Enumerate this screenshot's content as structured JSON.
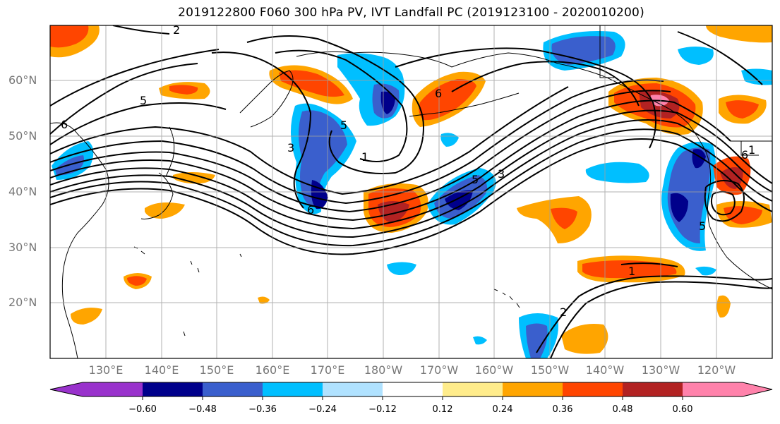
{
  "title": "2019122800 F060 300 hPa PV, IVT Landfall PC (2019123100 - 2020010200)",
  "lat_labels": [
    "60°N",
    "50°N",
    "40°N",
    "30°N",
    "20°N"
  ],
  "lon_labels": [
    "130°E",
    "140°E",
    "150°E",
    "160°E",
    "170°E",
    "180°W",
    "170°W",
    "160°W",
    "150°W",
    "140°W",
    "130°W",
    "120°W"
  ],
  "colorbar": {
    "ticks": [
      "−0.60",
      "−0.48",
      "−0.36",
      "−0.24",
      "−0.12",
      "0.12",
      "0.24",
      "0.36",
      "0.48",
      "0.60"
    ],
    "colors": [
      "#9932cc",
      "#00008b",
      "#3a5fcd",
      "#00bfff",
      "#b0e2ff",
      "#ffffff",
      "#ffec8b",
      "#ffa500",
      "#ff4500",
      "#b22222",
      "#ff82ab"
    ]
  },
  "contour_labels": [
    "2",
    "5",
    "6",
    "6",
    "5",
    "3",
    "1",
    "6",
    "5",
    "3",
    "1",
    "2",
    "6",
    "5",
    "1"
  ]
}
